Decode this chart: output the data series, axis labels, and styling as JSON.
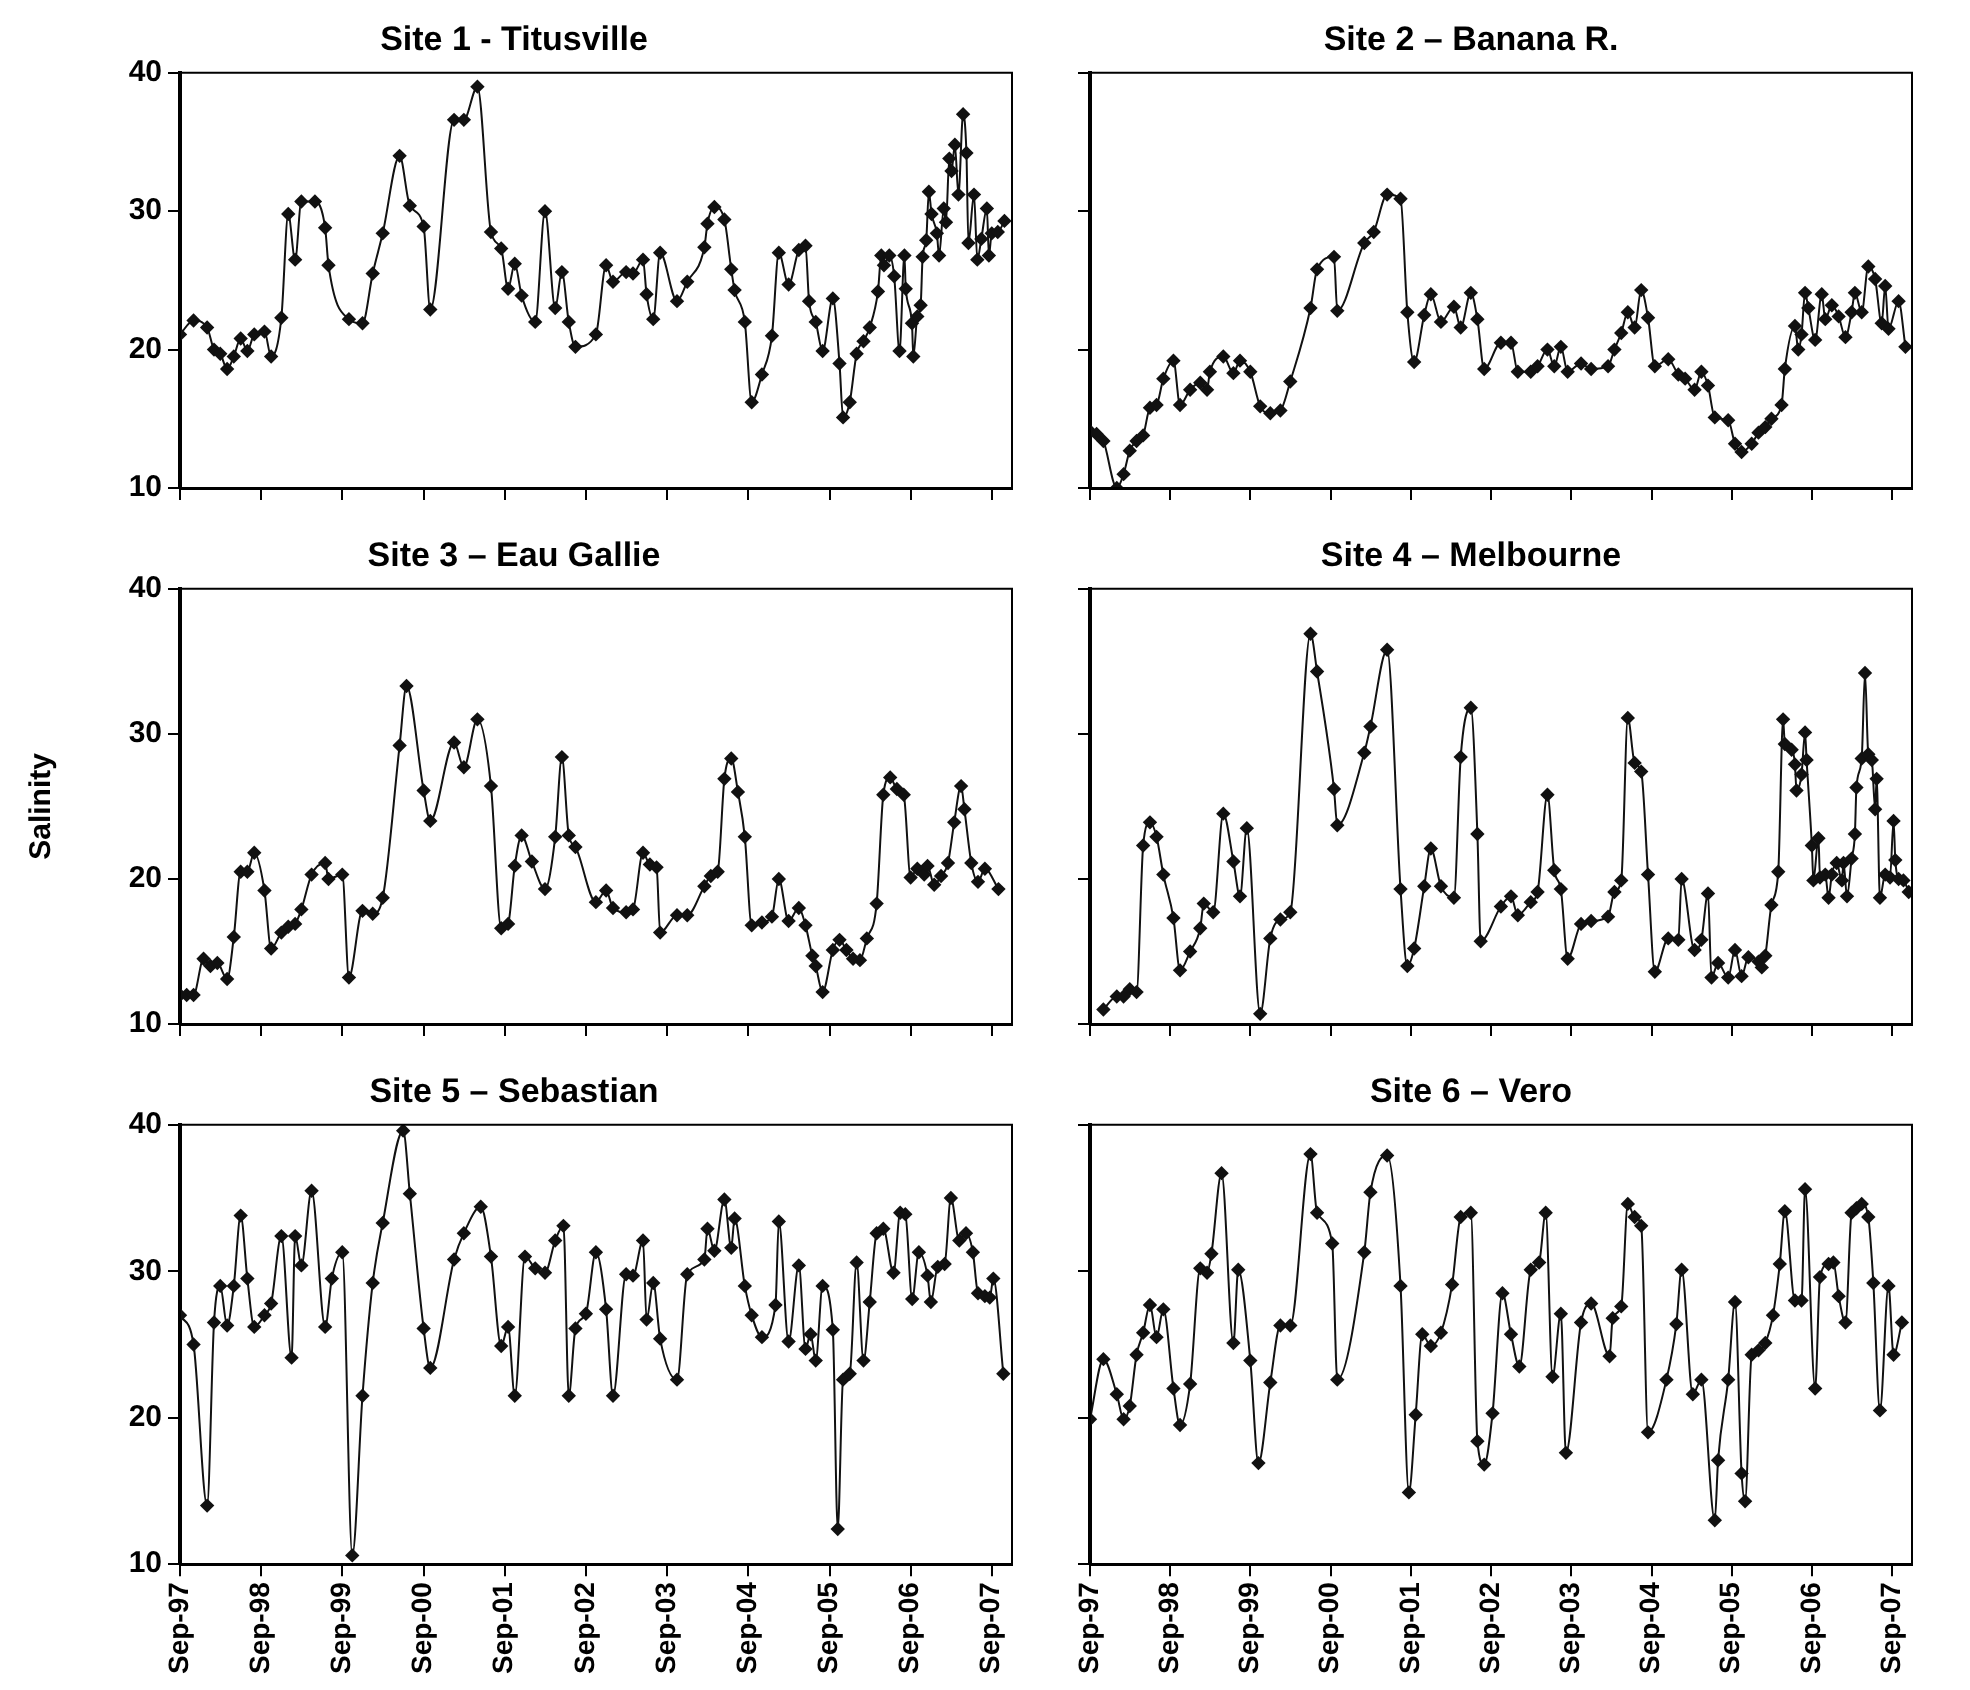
{
  "chart_data": [
    {
      "type": "line",
      "title": "Site 1 - Titusville",
      "marker": "diamond",
      "tick_labels": "y",
      "xlim": [
        "1997-09",
        "2007-12"
      ],
      "ylim": [
        10,
        40
      ],
      "yticks": [
        10,
        20,
        30,
        40
      ],
      "xticks": [
        {
          "value": "1997-09",
          "label": null
        },
        {
          "value": "1998-09",
          "label": null
        },
        {
          "value": "1999-09",
          "label": null
        },
        {
          "value": "2000-09",
          "label": null
        },
        {
          "value": "2001-09",
          "label": null
        },
        {
          "value": "2002-09",
          "label": null
        },
        {
          "value": "2003-09",
          "label": null
        },
        {
          "value": "2004-09",
          "label": null
        },
        {
          "value": "2005-09",
          "label": null
        },
        {
          "value": "2006-09",
          "label": null
        },
        {
          "value": "2007-09",
          "label": null
        }
      ],
      "x": [
        "1997-09",
        "1997-11",
        "1998-01",
        "1998-02",
        "1998-03",
        "1998-04",
        "1998-05",
        "1998-06",
        "1998-07",
        "1998-08",
        "1998-09-16",
        "1998-10-16",
        "1998-12",
        "1999-01",
        "1999-02",
        "1999-03",
        "1999-05",
        "1999-06-16",
        "1999-07",
        "1999-10",
        "1999-12",
        "2000-01-16",
        "2000-03",
        "2000-05-16",
        "2000-07",
        "2000-09",
        "2000-10",
        "2001-01-16",
        "2001-03",
        "2001-05",
        "2001-07",
        "2001-08-16",
        "2001-09-16",
        "2001-10-16",
        "2001-11-16",
        "2002-01-16",
        "2002-03",
        "2002-04-16",
        "2002-05-16",
        "2002-06-16",
        "2002-07-16",
        "2002-10-16",
        "2002-12",
        "2003-01",
        "2003-03",
        "2003-04",
        "2003-05-16",
        "2003-06",
        "2003-07",
        "2003-08",
        "2003-10-16",
        "2003-12",
        "2004-02-16",
        "2004-03",
        "2004-04",
        "2004-05-16",
        "2004-06-16",
        "2004-07",
        "2004-08-16",
        "2004-09-16",
        "2004-11",
        "2004-12-16",
        "2005-01-16",
        "2005-03",
        "2005-04-16",
        "2005-05-16",
        "2005-06",
        "2005-07",
        "2005-08",
        "2005-09-16",
        "2005-10-16",
        "2005-11",
        "2005-12",
        "2006-01",
        "2006-02",
        "2006-03",
        "2006-04-07",
        "2006-04-22",
        "2006-05-04",
        "2006-05-28",
        "2006-06-19",
        "2006-07-13",
        "2006-08-04",
        "2006-08-10",
        "2006-09-07",
        "2006-09-13",
        "2006-10-01",
        "2006-10-16",
        "2006-10-25",
        "2006-11-10",
        "2006-11-22",
        "2006-12-04",
        "2006-12-28",
        "2007-01-07",
        "2007-01-28",
        "2007-02-07",
        "2007-02-22",
        "2007-03-04",
        "2007-03-19",
        "2007-04-04",
        "2007-04-25",
        "2007-05-10",
        "2007-05-19",
        "2007-06-13",
        "2007-06-28",
        "2007-07-16",
        "2007-08-10",
        "2007-08-19",
        "2007-09-01",
        "2007-09-28",
        "2007-10-28"
      ],
      "series": [
        {
          "color": "#111111",
          "values": [
            21.1,
            22.1,
            21.6,
            20.0,
            19.7,
            18.6,
            19.5,
            20.8,
            19.9,
            21.1,
            21.3,
            19.5,
            22.3,
            29.8,
            26.5,
            30.7,
            30.7,
            28.8,
            26.1,
            22.2,
            21.9,
            25.5,
            28.4,
            34.0,
            30.4,
            28.9,
            22.9,
            36.6,
            36.6,
            39.0,
            28.5,
            27.3,
            24.4,
            26.2,
            23.9,
            22.0,
            30.0,
            23.0,
            25.6,
            22.0,
            20.2,
            21.1,
            26.1,
            24.9,
            25.6,
            25.5,
            26.5,
            24.0,
            22.2,
            27.0,
            23.5,
            24.9,
            27.4,
            29.1,
            30.3,
            29.4,
            25.8,
            24.3,
            22.0,
            16.2,
            18.2,
            21.0,
            27.0,
            24.7,
            27.2,
            27.5,
            23.5,
            22.0,
            19.9,
            23.7,
            19.0,
            15.1,
            16.2,
            19.7,
            20.6,
            21.6,
            24.2,
            26.8,
            26.1,
            26.8,
            25.3,
            19.9,
            26.8,
            24.4,
            21.9,
            19.5,
            22.4,
            23.2,
            26.7,
            27.9,
            31.4,
            29.8,
            28.4,
            26.8,
            30.2,
            29.2,
            33.8,
            32.9,
            34.8,
            31.2,
            37.0,
            34.2,
            27.7,
            31.2,
            26.5,
            28.0,
            30.2,
            26.8,
            28.4,
            28.5,
            29.3
          ]
        }
      ]
    },
    {
      "type": "line",
      "title": "Site 2 – Banana R.",
      "marker": "diamond",
      "tick_labels": false,
      "xlim": [
        "1997-09",
        "2007-12"
      ],
      "ylim": [
        10,
        40
      ],
      "yticks": [
        10,
        20,
        30,
        40
      ],
      "xticks": [
        {
          "value": "1997-09",
          "label": null
        },
        {
          "value": "1998-09",
          "label": null
        },
        {
          "value": "1999-09",
          "label": null
        },
        {
          "value": "2000-09",
          "label": null
        },
        {
          "value": "2001-09",
          "label": null
        },
        {
          "value": "2002-09",
          "label": null
        },
        {
          "value": "2003-09",
          "label": null
        },
        {
          "value": "2004-09",
          "label": null
        },
        {
          "value": "2005-09",
          "label": null
        },
        {
          "value": "2006-09",
          "label": null
        },
        {
          "value": "2007-09",
          "label": null
        }
      ],
      "x": [
        "1997-09",
        "1997-10",
        "1997-11",
        "1998-01",
        "1998-02",
        "1998-03",
        "1998-04",
        "1998-05",
        "1998-06",
        "1998-07",
        "1998-08",
        "1998-09-16",
        "1998-10-16",
        "1998-12",
        "1999-01-16",
        "1999-02-16",
        "1999-03",
        "1999-05",
        "1999-06-16",
        "1999-07-16",
        "1999-09",
        "1999-10-16",
        "1999-12",
        "2000-01-16",
        "2000-03",
        "2000-06",
        "2000-07",
        "2000-09-16",
        "2000-10",
        "2001-02",
        "2001-03-16",
        "2001-05-16",
        "2001-07-16",
        "2001-08-16",
        "2001-09-16",
        "2001-11",
        "2001-12",
        "2002-01-16",
        "2002-03-16",
        "2002-04-16",
        "2002-06",
        "2002-07",
        "2002-08",
        "2002-10-16",
        "2002-12",
        "2003-01",
        "2003-03",
        "2003-04",
        "2003-05-16",
        "2003-06-16",
        "2003-07-16",
        "2003-08-16",
        "2003-10-16",
        "2003-12",
        "2004-02-16",
        "2004-03-16",
        "2004-04-16",
        "2004-05-16",
        "2004-06-16",
        "2004-07-16",
        "2004-08-16",
        "2004-09-16",
        "2004-11-16",
        "2005-01",
        "2005-02",
        "2005-03-16",
        "2005-04-16",
        "2005-05-16",
        "2005-06-16",
        "2005-08-16",
        "2005-09-16",
        "2005-10-16",
        "2005-12",
        "2006-01",
        "2006-02",
        "2006-03",
        "2006-04-16",
        "2006-05",
        "2006-06-16",
        "2006-07",
        "2006-07-16",
        "2006-08",
        "2006-08-16",
        "2006-09-16",
        "2006-10-16",
        "2006-11",
        "2006-12",
        "2007-01",
        "2007-02",
        "2007-03",
        "2007-03-16",
        "2007-04-16",
        "2007-05-16",
        "2007-06-16",
        "2007-07-16",
        "2007-08",
        "2007-08-16",
        "2007-10",
        "2007-11"
      ],
      "series": [
        {
          "color": "#111111",
          "values": [
            14.1,
            13.9,
            13.4,
            10.0,
            11.0,
            12.7,
            13.4,
            13.8,
            15.8,
            16.0,
            17.9,
            19.2,
            16.0,
            17.1,
            17.6,
            17.1,
            18.4,
            19.5,
            18.3,
            19.2,
            18.4,
            15.9,
            15.4,
            15.6,
            17.7,
            23.0,
            25.8,
            26.7,
            22.8,
            27.7,
            28.5,
            31.2,
            30.9,
            22.7,
            19.1,
            22.5,
            24.0,
            22.0,
            23.1,
            21.6,
            24.1,
            22.2,
            18.6,
            20.5,
            20.5,
            18.4,
            18.4,
            18.8,
            20.0,
            18.8,
            20.2,
            18.4,
            19.0,
            18.6,
            18.8,
            20.0,
            21.2,
            22.7,
            21.6,
            24.3,
            22.3,
            18.8,
            19.3,
            18.2,
            17.9,
            17.1,
            18.4,
            17.4,
            15.1,
            14.9,
            13.2,
            12.6,
            13.2,
            14.0,
            14.4,
            15.0,
            16.0,
            18.6,
            21.7,
            20.0,
            21.1,
            24.1,
            23.0,
            20.7,
            24.0,
            22.2,
            23.2,
            22.4,
            20.9,
            22.7,
            24.1,
            22.7,
            26.0,
            25.1,
            21.9,
            24.6,
            21.5,
            23.5,
            20.2
          ]
        }
      ]
    },
    {
      "type": "line",
      "title": "Site 3 – Eau Gallie",
      "ylabel": "Salinity",
      "marker": "diamond",
      "tick_labels": "y",
      "xlim": [
        "1997-09",
        "2007-12"
      ],
      "ylim": [
        10,
        40
      ],
      "yticks": [
        10,
        20,
        30,
        40
      ],
      "xticks": [
        {
          "value": "1997-09",
          "label": null
        },
        {
          "value": "1998-09",
          "label": null
        },
        {
          "value": "1999-09",
          "label": null
        },
        {
          "value": "2000-09",
          "label": null
        },
        {
          "value": "2001-09",
          "label": null
        },
        {
          "value": "2002-09",
          "label": null
        },
        {
          "value": "2003-09",
          "label": null
        },
        {
          "value": "2004-09",
          "label": null
        },
        {
          "value": "2005-09",
          "label": null
        },
        {
          "value": "2006-09",
          "label": null
        },
        {
          "value": "2007-09",
          "label": null
        }
      ],
      "x": [
        "1997-09",
        "1997-10",
        "1997-11",
        "1997-12-16",
        "1998-01-16",
        "1998-02-16",
        "1998-04",
        "1998-05",
        "1998-06",
        "1998-07",
        "1998-08",
        "1998-09-16",
        "1998-10-16",
        "1998-12",
        "1999-01",
        "1999-02",
        "1999-03",
        "1999-04-16",
        "1999-06-16",
        "1999-07",
        "1999-09",
        "1999-10",
        "1999-12",
        "2000-01-16",
        "2000-03",
        "2000-05-16",
        "2000-06-16",
        "2000-09",
        "2000-10",
        "2001-01-16",
        "2001-03",
        "2001-05",
        "2001-07",
        "2001-08-16",
        "2001-09-16",
        "2001-10-16",
        "2001-11-16",
        "2002-01",
        "2002-03",
        "2002-04-16",
        "2002-05-16",
        "2002-06-16",
        "2002-07-16",
        "2002-10-16",
        "2002-12",
        "2003-01",
        "2003-03",
        "2003-04",
        "2003-05-16",
        "2003-06-16",
        "2003-07-16",
        "2003-08",
        "2003-10-16",
        "2003-12",
        "2004-02-16",
        "2004-03-16",
        "2004-04-16",
        "2004-05-16",
        "2004-06-16",
        "2004-07-16",
        "2004-08-16",
        "2004-09-16",
        "2004-11",
        "2004-12-16",
        "2005-01-16",
        "2005-03",
        "2005-04-16",
        "2005-05-16",
        "2005-06-16",
        "2005-07",
        "2005-08",
        "2005-09-16",
        "2005-10-16",
        "2005-11-16",
        "2005-12-16",
        "2006-01-16",
        "2006-02-16",
        "2006-04",
        "2006-05",
        "2006-06",
        "2006-07",
        "2006-08",
        "2006-09",
        "2006-10",
        "2006-11",
        "2006-11-16",
        "2006-12-16",
        "2007-01-16",
        "2007-02-16",
        "2007-03-16",
        "2007-04-16",
        "2007-05",
        "2007-06",
        "2007-07",
        "2007-08",
        "2007-10"
      ],
      "series": [
        {
          "color": "#111111",
          "values": [
            12.0,
            12.0,
            12.0,
            14.5,
            14.0,
            14.2,
            13.1,
            16.0,
            20.5,
            20.5,
            21.8,
            19.2,
            15.2,
            16.3,
            16.7,
            16.9,
            17.9,
            20.3,
            21.1,
            20.0,
            20.3,
            13.2,
            17.8,
            17.6,
            18.7,
            29.2,
            33.3,
            26.1,
            24.0,
            29.4,
            27.7,
            31.0,
            26.4,
            16.6,
            16.9,
            20.9,
            23.0,
            21.2,
            19.3,
            22.9,
            28.4,
            23.0,
            22.2,
            18.4,
            19.2,
            18.0,
            17.7,
            17.9,
            21.8,
            21.0,
            20.8,
            16.3,
            17.5,
            17.5,
            19.5,
            20.2,
            20.5,
            26.9,
            28.3,
            26.0,
            22.9,
            16.8,
            17.0,
            17.4,
            20.0,
            17.1,
            18.0,
            16.8,
            14.7,
            14.0,
            12.2,
            15.1,
            15.8,
            15.1,
            14.5,
            14.4,
            15.9,
            18.3,
            25.8,
            27.0,
            26.2,
            25.8,
            20.1,
            20.7,
            20.3,
            20.9,
            19.6,
            20.2,
            21.1,
            23.9,
            26.4,
            24.8,
            21.1,
            19.8,
            20.7,
            19.3
          ]
        }
      ]
    },
    {
      "type": "line",
      "title": "Site 4 – Melbourne",
      "marker": "diamond",
      "tick_labels": false,
      "xlim": [
        "1997-09",
        "2007-12"
      ],
      "ylim": [
        10,
        40
      ],
      "yticks": [
        10,
        20,
        30,
        40
      ],
      "xticks": [
        {
          "value": "1997-09",
          "label": null
        },
        {
          "value": "1998-09",
          "label": null
        },
        {
          "value": "1999-09",
          "label": null
        },
        {
          "value": "2000-09",
          "label": null
        },
        {
          "value": "2001-09",
          "label": null
        },
        {
          "value": "2002-09",
          "label": null
        },
        {
          "value": "2003-09",
          "label": null
        },
        {
          "value": "2004-09",
          "label": null
        },
        {
          "value": "2005-09",
          "label": null
        },
        {
          "value": "2006-09",
          "label": null
        },
        {
          "value": "2007-09",
          "label": null
        }
      ],
      "x": [
        "1997-11",
        "1998-01",
        "1998-02",
        "1998-03",
        "1998-04",
        "1998-05",
        "1998-06",
        "1998-07",
        "1998-08",
        "1998-09-16",
        "1998-10-16",
        "1998-12",
        "1999-01-16",
        "1999-02",
        "1999-03-16",
        "1999-05",
        "1999-06-16",
        "1999-07-16",
        "1999-08-16",
        "1999-10-16",
        "1999-12",
        "2000-01-16",
        "2000-03",
        "2000-06",
        "2000-07",
        "2000-09-16",
        "2000-10",
        "2001-02",
        "2001-03",
        "2001-05-16",
        "2001-07-16",
        "2001-08-16",
        "2001-09-16",
        "2001-11",
        "2001-12",
        "2002-01-16",
        "2002-03-16",
        "2002-04-16",
        "2002-06",
        "2002-07",
        "2002-07-16",
        "2002-10-16",
        "2002-12",
        "2003-01",
        "2003-03",
        "2003-04",
        "2003-05-16",
        "2003-06-16",
        "2003-07-16",
        "2003-08-16",
        "2003-10-16",
        "2003-12",
        "2004-02-16",
        "2004-03-16",
        "2004-04-16",
        "2004-05-16",
        "2004-06-16",
        "2004-07-16",
        "2004-08-16",
        "2004-09-16",
        "2004-11-16",
        "2005-01",
        "2005-01-16",
        "2005-03-16",
        "2005-04-16",
        "2005-05-16",
        "2005-06",
        "2005-07",
        "2005-08-16",
        "2005-09-16",
        "2005-10-16",
        "2005-11-16",
        "2006-01",
        "2006-01-16",
        "2006-02",
        "2006-03",
        "2006-04",
        "2006-04-23",
        "2006-05",
        "2006-06",
        "2006-06-16",
        "2006-06-23",
        "2006-07-16",
        "2006-08",
        "2006-08-08",
        "2006-09",
        "2006-09-08",
        "2006-10",
        "2006-10-08",
        "2006-11",
        "2006-11-16",
        "2006-12",
        "2006-12-23",
        "2007-01-16",
        "2007-01-23",
        "2007-02-08",
        "2007-03",
        "2007-03-16",
        "2007-03-23",
        "2007-04-16",
        "2007-05",
        "2007-05-16",
        "2007-06",
        "2007-06-16",
        "2007-06-23",
        "2007-07-08",
        "2007-08",
        "2007-08-23",
        "2007-09-08",
        "2007-09-16",
        "2007-10",
        "2007-10-23",
        "2007-11-16"
      ],
      "series": [
        {
          "color": "#111111",
          "values": [
            11.0,
            11.9,
            11.9,
            12.4,
            12.2,
            22.3,
            23.9,
            22.9,
            20.3,
            17.3,
            13.7,
            15.0,
            16.6,
            18.3,
            17.7,
            24.5,
            21.2,
            18.8,
            23.5,
            10.7,
            15.9,
            17.2,
            17.7,
            36.9,
            34.3,
            26.2,
            23.7,
            28.7,
            30.5,
            35.8,
            19.3,
            14.0,
            15.2,
            19.5,
            22.1,
            19.5,
            18.7,
            28.4,
            31.8,
            23.1,
            15.7,
            18.1,
            18.8,
            17.5,
            18.4,
            19.1,
            25.8,
            20.6,
            19.3,
            14.5,
            16.9,
            17.1,
            17.4,
            19.1,
            19.9,
            31.1,
            28.0,
            27.4,
            20.3,
            13.6,
            15.9,
            15.8,
            20.0,
            15.1,
            15.8,
            19.0,
            13.2,
            14.2,
            13.2,
            15.1,
            13.3,
            14.6,
            14.3,
            13.9,
            14.7,
            18.2,
            20.5,
            31.0,
            29.3,
            28.9,
            27.9,
            26.1,
            27.2,
            30.1,
            28.2,
            22.3,
            19.9,
            22.8,
            20.1,
            20.3,
            18.7,
            20.3,
            21.1,
            19.9,
            21.1,
            18.8,
            21.4,
            23.1,
            26.3,
            28.3,
            34.2,
            28.6,
            28.2,
            24.8,
            26.9,
            18.7,
            20.3,
            20.1,
            24.0,
            21.3,
            20.0,
            19.9,
            19.1
          ]
        }
      ]
    },
    {
      "type": "line",
      "title": "Site 5 – Sebastian",
      "marker": "diamond",
      "xlim": [
        "1997-09",
        "2007-12"
      ],
      "ylim": [
        10,
        40
      ],
      "yticks": [
        10,
        20,
        30,
        40
      ],
      "xticks": [
        {
          "value": "1997-09",
          "label": "Sep-97"
        },
        {
          "value": "1998-09",
          "label": "Sep-98"
        },
        {
          "value": "1999-09",
          "label": "Sep-99"
        },
        {
          "value": "2000-09",
          "label": "Sep-00"
        },
        {
          "value": "2001-09",
          "label": "Sep-01"
        },
        {
          "value": "2002-09",
          "label": "Sep-02"
        },
        {
          "value": "2003-09",
          "label": "Sep-03"
        },
        {
          "value": "2004-09",
          "label": "Sep-04"
        },
        {
          "value": "2005-09",
          "label": "Sep-05"
        },
        {
          "value": "2006-09",
          "label": "Sep-06"
        },
        {
          "value": "2007-09",
          "label": "Sep-07"
        }
      ],
      "x": [
        "1997-09",
        "1997-11",
        "1998-01",
        "1998-02",
        "1998-03",
        "1998-04",
        "1998-05",
        "1998-06",
        "1998-07",
        "1998-08",
        "1998-09-16",
        "1998-10-16",
        "1998-12",
        "1999-01-16",
        "1999-02",
        "1999-03",
        "1999-04-16",
        "1999-06-16",
        "1999-07-16",
        "1999-09",
        "1999-10-16",
        "1999-12",
        "2000-01-16",
        "2000-03",
        "2000-06",
        "2000-07",
        "2000-09",
        "2000-10",
        "2001-01-16",
        "2001-03",
        "2001-05-16",
        "2001-07",
        "2001-08-16",
        "2001-09-16",
        "2001-10-16",
        "2001-12",
        "2002-01-16",
        "2002-03",
        "2002-04-16",
        "2002-05-23",
        "2002-06-16",
        "2002-07-16",
        "2002-09",
        "2002-10-16",
        "2002-12",
        "2003-01",
        "2003-03",
        "2003-04",
        "2003-05-16",
        "2003-06",
        "2003-07",
        "2003-08",
        "2003-10-16",
        "2003-12",
        "2004-02-16",
        "2004-03",
        "2004-04",
        "2004-05-16",
        "2004-06-16",
        "2004-07",
        "2004-08-16",
        "2004-09-16",
        "2004-11",
        "2005-01",
        "2005-01-16",
        "2005-03",
        "2005-04-16",
        "2005-05-16",
        "2005-06-08",
        "2005-07",
        "2005-08",
        "2005-09-16",
        "2005-10-08",
        "2005-11",
        "2005-12",
        "2006-01",
        "2006-02",
        "2006-03",
        "2006-04",
        "2006-05",
        "2006-06-16",
        "2006-07-16",
        "2006-08-08",
        "2006-09-08",
        "2006-10-08",
        "2006-11-16",
        "2006-12",
        "2007-01",
        "2007-02",
        "2007-03",
        "2007-04-08",
        "2007-05-08",
        "2007-06-08",
        "2007-07",
        "2007-08",
        "2007-08-23",
        "2007-09-08",
        "2007-10-23"
      ],
      "series": [
        {
          "color": "#111111",
          "values": [
            27.0,
            25.0,
            14.0,
            26.5,
            29.0,
            26.3,
            29.0,
            33.8,
            29.5,
            26.2,
            27.0,
            27.8,
            32.4,
            24.1,
            32.4,
            30.4,
            35.5,
            26.2,
            29.5,
            31.3,
            10.6,
            21.5,
            29.2,
            33.3,
            39.6,
            35.3,
            26.1,
            23.4,
            30.8,
            32.6,
            34.4,
            31.0,
            24.9,
            26.2,
            21.5,
            31.0,
            30.2,
            29.9,
            32.1,
            33.1,
            21.5,
            26.1,
            27.1,
            31.3,
            27.4,
            21.5,
            29.8,
            29.7,
            32.1,
            26.7,
            29.2,
            25.4,
            22.6,
            29.8,
            30.8,
            32.9,
            31.4,
            34.9,
            31.6,
            33.6,
            29.0,
            27.0,
            25.5,
            27.7,
            33.4,
            25.2,
            30.4,
            24.7,
            25.7,
            23.9,
            29.0,
            26.0,
            12.4,
            22.6,
            23.0,
            30.6,
            23.9,
            27.9,
            32.6,
            32.9,
            29.9,
            34.0,
            33.9,
            28.1,
            31.3,
            29.7,
            27.9,
            30.3,
            30.5,
            35.0,
            32.1,
            32.6,
            31.3,
            28.5,
            28.3,
            28.2,
            29.5,
            23.0
          ]
        }
      ]
    },
    {
      "type": "line",
      "title": "Site 6 – Vero",
      "marker": "diamond",
      "tick_labels": "x",
      "xlim": [
        "1997-09",
        "2007-12"
      ],
      "ylim": [
        10,
        40
      ],
      "yticks": [
        10,
        20,
        30,
        40
      ],
      "xticks": [
        {
          "value": "1997-09",
          "label": "Sep-97"
        },
        {
          "value": "1998-09",
          "label": "Sep-98"
        },
        {
          "value": "1999-09",
          "label": "Sep-99"
        },
        {
          "value": "2000-09",
          "label": "Sep-00"
        },
        {
          "value": "2001-09",
          "label": "Sep-01"
        },
        {
          "value": "2002-09",
          "label": "Sep-02"
        },
        {
          "value": "2003-09",
          "label": "Sep-03"
        },
        {
          "value": "2004-09",
          "label": "Sep-04"
        },
        {
          "value": "2005-09",
          "label": "Sep-05"
        },
        {
          "value": "2006-09",
          "label": "Sep-06"
        },
        {
          "value": "2007-09",
          "label": "Sep-07"
        }
      ],
      "x": [
        "1997-09",
        "1997-11",
        "1998-01",
        "1998-02",
        "1998-03",
        "1998-04",
        "1998-05",
        "1998-06",
        "1998-07",
        "1998-08",
        "1998-09-16",
        "1998-10-16",
        "1998-12",
        "1999-01-16",
        "1999-02-16",
        "1999-03-08",
        "1999-04-23",
        "1999-06-16",
        "1999-07-08",
        "1999-09",
        "1999-10-08",
        "1999-12",
        "2000-01-16",
        "2000-03",
        "2000-06",
        "2000-07",
        "2000-09-08",
        "2000-10",
        "2001-02",
        "2001-03",
        "2001-05-16",
        "2001-07-16",
        "2001-08-23",
        "2001-09-23",
        "2001-10-23",
        "2001-12",
        "2002-01-16",
        "2002-03-08",
        "2002-04-16",
        "2002-06",
        "2002-07",
        "2002-08",
        "2002-09-08",
        "2002-10-23",
        "2002-12",
        "2003-01-08",
        "2003-03",
        "2003-04-08",
        "2003-05-08",
        "2003-06-08",
        "2003-07-16",
        "2003-08-08",
        "2003-10-16",
        "2003-12",
        "2004-02-23",
        "2004-03-08",
        "2004-04-16",
        "2004-05-16",
        "2004-06-16",
        "2004-07-16",
        "2004-08-16",
        "2004-11-08",
        "2004-12-23",
        "2005-01-16",
        "2005-03-08",
        "2005-04-16",
        "2005-06-16",
        "2005-07",
        "2005-08-16",
        "2005-09-16",
        "2005-10-16",
        "2005-11",
        "2005-12",
        "2006-01",
        "2006-02",
        "2006-03-08",
        "2006-04-08",
        "2006-05",
        "2006-06-16",
        "2006-07-16",
        "2006-08",
        "2006-09-16",
        "2006-10-08",
        "2006-11-16",
        "2006-12-08",
        "2007-01",
        "2007-02",
        "2007-03",
        "2007-03-23",
        "2007-04-16",
        "2007-05-16",
        "2007-06-08",
        "2007-07-08",
        "2007-08-16",
        "2007-09-08",
        "2007-10-16"
      ],
      "series": [
        {
          "color": "#111111",
          "values": [
            19.9,
            24.0,
            21.6,
            19.9,
            20.8,
            24.3,
            25.8,
            27.7,
            25.5,
            27.4,
            22.0,
            19.5,
            22.3,
            30.2,
            29.9,
            31.2,
            36.7,
            25.1,
            30.1,
            23.9,
            16.9,
            22.4,
            26.3,
            26.3,
            38.0,
            34.0,
            31.9,
            22.6,
            31.3,
            35.4,
            37.9,
            29.0,
            14.9,
            20.2,
            25.7,
            24.9,
            25.8,
            29.1,
            33.7,
            34.0,
            18.4,
            16.8,
            20.3,
            28.5,
            25.7,
            23.5,
            30.1,
            30.6,
            34.0,
            22.8,
            27.1,
            17.6,
            26.5,
            27.8,
            24.2,
            26.8,
            27.6,
            34.6,
            33.7,
            33.1,
            19.0,
            22.6,
            26.4,
            30.1,
            21.6,
            22.6,
            13.0,
            17.1,
            22.6,
            27.9,
            16.2,
            14.3,
            24.3,
            24.6,
            25.1,
            27.0,
            30.5,
            34.1,
            28.0,
            28.0,
            35.6,
            22.0,
            29.6,
            30.5,
            30.6,
            28.3,
            26.5,
            34.0,
            34.3,
            34.6,
            33.7,
            29.2,
            20.5,
            29.0,
            24.3,
            26.5
          ]
        }
      ]
    }
  ]
}
